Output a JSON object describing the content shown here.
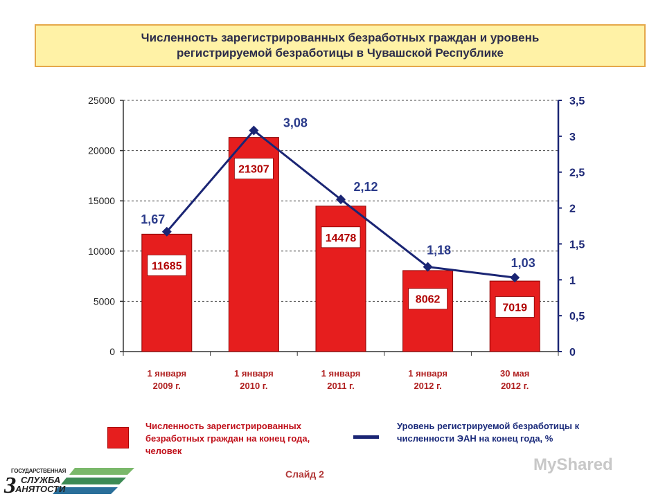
{
  "title": {
    "line1": "Численность зарегистрированных безработных граждан и уровень",
    "line2": "регистрируемой безработицы в Чувашской Республике"
  },
  "chart_data": {
    "type": "bar",
    "categories": [
      [
        "1 января",
        "2009 г."
      ],
      [
        "1 января",
        "2010 г."
      ],
      [
        "1 января",
        "2011 г."
      ],
      [
        "1 января",
        "2012 г."
      ],
      [
        "30 мая",
        "2012 г."
      ]
    ],
    "series": [
      {
        "kind": "bar",
        "axis": "left",
        "values": [
          11685,
          21307,
          14478,
          8062,
          7019
        ],
        "labels": [
          "11685",
          "21307",
          "14478",
          "8062",
          "7019"
        ],
        "color": "#e61e1e"
      },
      {
        "kind": "line",
        "axis": "right",
        "values": [
          1.67,
          3.08,
          2.12,
          1.18,
          1.03
        ],
        "labels": [
          "1,67",
          "3,08",
          "2,12",
          "1,18",
          "1,03"
        ],
        "color": "#1a2574"
      }
    ],
    "ylim_left": [
      0,
      25000
    ],
    "yticks_left": [
      "0",
      "5000",
      "10000",
      "15000",
      "20000",
      "25000"
    ],
    "ylim_right": [
      0,
      3.5
    ],
    "yticks_right": [
      "0",
      "0,5",
      "1",
      "1,5",
      "2",
      "2,5",
      "3",
      "3,5"
    ],
    "grid": true,
    "legend_placement": "bottom"
  },
  "legend": {
    "bar_label": "Численность зарегистрированных безработных граждан на конец года, человек",
    "line_label": "Уровень регистрируемой безработицы к численности ЭАН на конец года, %"
  },
  "footer": {
    "slide_label": "Слайд 2",
    "logo_line1": "ГОСУДАРСТВЕННАЯ",
    "logo_line2": "СЛУЖБА",
    "logo_line3": "АНЯТОСТИ",
    "logo_letter": "З",
    "watermark": "MyShared"
  }
}
